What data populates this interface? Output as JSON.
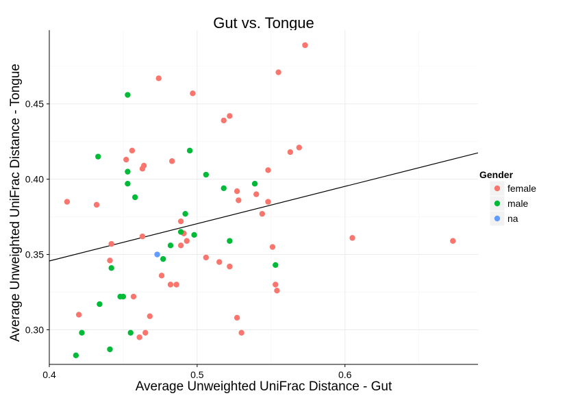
{
  "chart_data": {
    "type": "scatter",
    "title": "Gut vs. Tongue",
    "xlabel": "Average Unweighted UniFrac Distance - Gut",
    "ylabel": "Average Unweighted UniFrac Distance - Tongue",
    "xlim": [
      0.4,
      0.69
    ],
    "ylim": [
      0.277,
      0.499
    ],
    "x_ticks": [
      0.4,
      0.5,
      0.6
    ],
    "x_tick_labels": [
      "0.4",
      "0.5",
      "0.6"
    ],
    "y_ticks": [
      0.3,
      0.35,
      0.4,
      0.45
    ],
    "y_tick_labels": [
      "0.30",
      "0.35",
      "0.40",
      "0.45"
    ],
    "grid": true,
    "legend_title": "Gender",
    "legend_position": "right",
    "series": [
      {
        "name": "female",
        "color": "#F8766D",
        "points": [
          [
            0.573,
            0.489
          ],
          [
            0.555,
            0.471
          ],
          [
            0.474,
            0.467
          ],
          [
            0.497,
            0.457
          ],
          [
            0.522,
            0.442
          ],
          [
            0.518,
            0.439
          ],
          [
            0.569,
            0.421
          ],
          [
            0.563,
            0.418
          ],
          [
            0.456,
            0.419
          ],
          [
            0.452,
            0.413
          ],
          [
            0.483,
            0.412
          ],
          [
            0.464,
            0.409
          ],
          [
            0.463,
            0.407
          ],
          [
            0.548,
            0.406
          ],
          [
            0.527,
            0.392
          ],
          [
            0.54,
            0.39
          ],
          [
            0.528,
            0.386
          ],
          [
            0.548,
            0.385
          ],
          [
            0.412,
            0.385
          ],
          [
            0.432,
            0.383
          ],
          [
            0.544,
            0.377
          ],
          [
            0.489,
            0.372
          ],
          [
            0.491,
            0.364
          ],
          [
            0.463,
            0.362
          ],
          [
            0.605,
            0.361
          ],
          [
            0.673,
            0.359
          ],
          [
            0.493,
            0.359
          ],
          [
            0.442,
            0.357
          ],
          [
            0.489,
            0.356
          ],
          [
            0.551,
            0.355
          ],
          [
            0.506,
            0.348
          ],
          [
            0.441,
            0.346
          ],
          [
            0.515,
            0.345
          ],
          [
            0.522,
            0.342
          ],
          [
            0.476,
            0.336
          ],
          [
            0.482,
            0.33
          ],
          [
            0.486,
            0.33
          ],
          [
            0.553,
            0.33
          ],
          [
            0.554,
            0.326
          ],
          [
            0.457,
            0.322
          ],
          [
            0.42,
            0.31
          ],
          [
            0.468,
            0.309
          ],
          [
            0.527,
            0.308
          ],
          [
            0.465,
            0.298
          ],
          [
            0.53,
            0.298
          ],
          [
            0.461,
            0.295
          ]
        ]
      },
      {
        "name": "male",
        "color": "#00BA38",
        "points": [
          [
            0.453,
            0.456
          ],
          [
            0.495,
            0.419
          ],
          [
            0.433,
            0.415
          ],
          [
            0.453,
            0.405
          ],
          [
            0.506,
            0.403
          ],
          [
            0.453,
            0.397
          ],
          [
            0.539,
            0.397
          ],
          [
            0.518,
            0.394
          ],
          [
            0.458,
            0.388
          ],
          [
            0.492,
            0.377
          ],
          [
            0.489,
            0.365
          ],
          [
            0.498,
            0.363
          ],
          [
            0.522,
            0.359
          ],
          [
            0.482,
            0.356
          ],
          [
            0.477,
            0.347
          ],
          [
            0.553,
            0.343
          ],
          [
            0.442,
            0.341
          ],
          [
            0.45,
            0.322
          ],
          [
            0.448,
            0.322
          ],
          [
            0.434,
            0.317
          ],
          [
            0.422,
            0.298
          ],
          [
            0.455,
            0.298
          ],
          [
            0.441,
            0.287
          ],
          [
            0.418,
            0.283
          ]
        ]
      },
      {
        "name": "na",
        "color": "#619CFF",
        "points": [
          [
            0.473,
            0.35
          ]
        ]
      }
    ],
    "regression_line": {
      "x": [
        0.4,
        0.69
      ],
      "y": [
        0.3457,
        0.4175
      ]
    }
  }
}
